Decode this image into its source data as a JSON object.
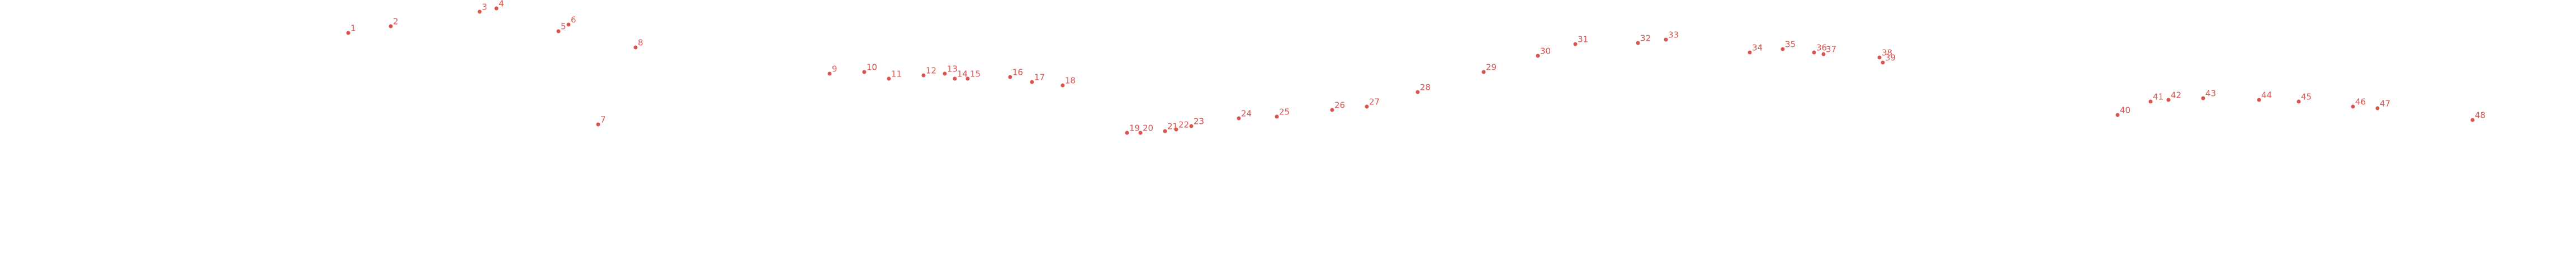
{
  "chart_data": {
    "type": "scatter",
    "color": "#d9534f",
    "labels": [
      "1",
      "2",
      "3",
      "4",
      "5",
      "6",
      "7",
      "8",
      "9",
      "10",
      "11",
      "12",
      "13",
      "14",
      "15",
      "16",
      "17",
      "18",
      "19",
      "20",
      "21",
      "22",
      "23",
      "24",
      "25",
      "26",
      "27",
      "28",
      "29",
      "30",
      "31",
      "32",
      "33",
      "34",
      "35",
      "36",
      "37",
      "38",
      "39",
      "40",
      "41",
      "42",
      "43",
      "44",
      "45",
      "46",
      "47",
      "48"
    ],
    "x": [
      623,
      699,
      858,
      888,
      999,
      1017,
      1070,
      1137,
      1484,
      1546,
      1590,
      1652,
      1690,
      1708,
      1731,
      1807,
      1846,
      1901,
      2016,
      2040,
      2084,
      2104,
      2131,
      2216,
      2284,
      2383,
      2445,
      2536,
      2654,
      2751,
      2818,
      2930,
      2980,
      3130,
      3189,
      3245,
      3262,
      3362,
      3368,
      3788,
      3847,
      3879,
      3941,
      4041,
      4112,
      4209,
      4253,
      4423
    ],
    "values": [
      53,
      41,
      15,
      9,
      50,
      38,
      217,
      79,
      126,
      123,
      135,
      129,
      126,
      135,
      135,
      132,
      141,
      147,
      232,
      232,
      229,
      226,
      220,
      206,
      203,
      191,
      185,
      159,
      123,
      94,
      73,
      71,
      65,
      88,
      82,
      88,
      91,
      97,
      106,
      200,
      176,
      173,
      170,
      173,
      176,
      185,
      188,
      209
    ],
    "xlim": [
      0,
      4608
    ],
    "ylim": [
      500,
      0
    ]
  }
}
